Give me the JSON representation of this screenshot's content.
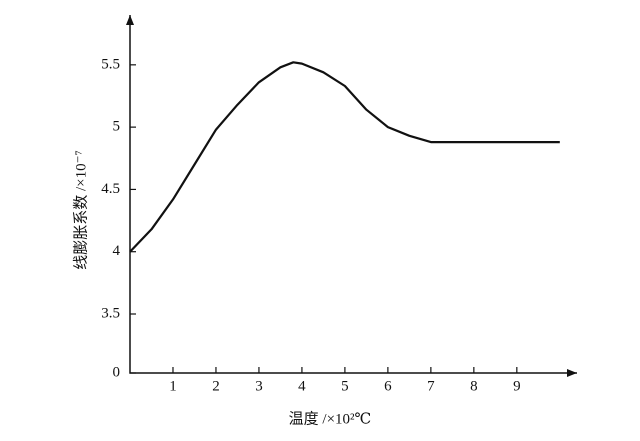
{
  "chart_data": {
    "type": "line",
    "x_label": "温度 /×10²℃",
    "y_label": "线膨胀系数 /×10⁻⁷",
    "x": [
      0,
      0.5,
      1,
      1.5,
      2,
      2.5,
      3,
      3.5,
      3.8,
      4,
      4.5,
      5,
      5.5,
      6,
      6.5,
      7,
      8,
      9,
      10
    ],
    "series": [
      {
        "color": "#111111",
        "values": [
          4.0,
          4.18,
          4.42,
          4.7,
          4.98,
          5.18,
          5.36,
          5.48,
          5.52,
          5.51,
          5.44,
          5.33,
          5.14,
          5.0,
          4.93,
          4.88,
          4.88,
          4.88,
          4.88
        ]
      }
    ],
    "xlim": [
      0,
      10.4
    ],
    "xticks": [
      1,
      2,
      3,
      4,
      5,
      6,
      7,
      8,
      9
    ],
    "ylim": [
      0,
      5.9
    ],
    "yticks": [
      0,
      3.5,
      4.0,
      4.5,
      5.0,
      5.5
    ],
    "y_axis_break": true,
    "grid": false
  }
}
